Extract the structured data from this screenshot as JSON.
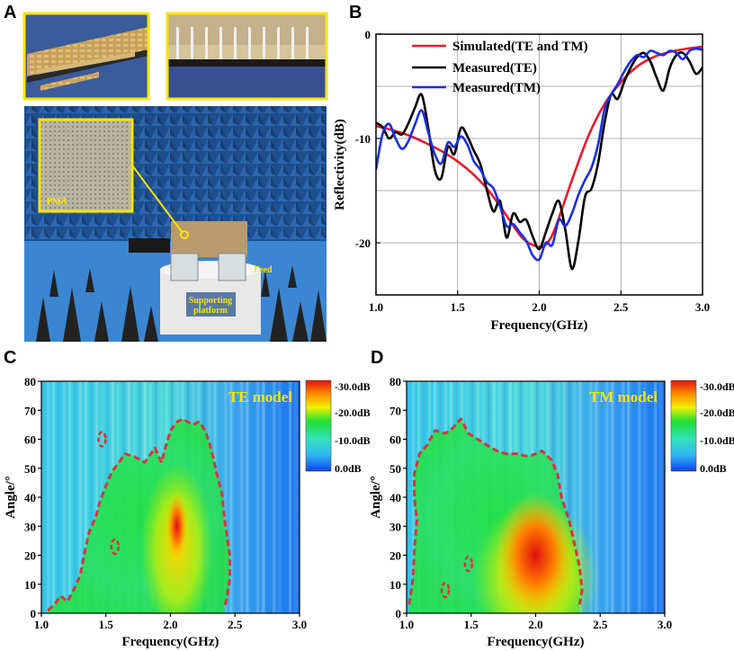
{
  "panels": {
    "a": {
      "letter": "A"
    },
    "b": {
      "letter": "B"
    },
    "c": {
      "letter": "C"
    },
    "d": {
      "letter": "D"
    }
  },
  "photo": {
    "labels": {
      "pma": "PMA",
      "feed": "Feed",
      "support_line1": "Supporting",
      "support_line2": "platform"
    }
  },
  "colors": {
    "simulated": "#e8192c",
    "measured_te": "#000000",
    "measured_tm": "#1a2ee0",
    "contour": "#d8343c",
    "highlight": "#ffe400"
  },
  "chart_data": [
    {
      "id": "B",
      "type": "line",
      "xlabel": "Frequency(GHz)",
      "ylabel": "Reflectivity(dB)",
      "xlim": [
        1.0,
        3.0
      ],
      "ylim": [
        -25,
        0
      ],
      "xticks": [
        "1.0",
        "1.5",
        "2.0",
        "2.5",
        "3.0"
      ],
      "yticks": [
        "0",
        "-10",
        "-20"
      ],
      "grid": true,
      "legend_position": "top",
      "series": [
        {
          "name": "Simulated(TE and TM)",
          "x": [
            1.0,
            1.1,
            1.2,
            1.3,
            1.4,
            1.5,
            1.6,
            1.7,
            1.8,
            1.9,
            2.0,
            2.05,
            2.1,
            2.2,
            2.3,
            2.4,
            2.5,
            2.6,
            2.7,
            2.8,
            2.9,
            3.0
          ],
          "y": [
            -8.8,
            -9.2,
            -9.7,
            -10.4,
            -11.2,
            -12.2,
            -13.5,
            -15.2,
            -17.4,
            -19.6,
            -20.4,
            -20.0,
            -18.5,
            -14.0,
            -9.8,
            -6.7,
            -4.6,
            -3.1,
            -2.2,
            -1.7,
            -1.4,
            -1.2
          ]
        },
        {
          "name": "Measured(TE)",
          "x": [
            1.0,
            1.04,
            1.08,
            1.12,
            1.16,
            1.2,
            1.24,
            1.28,
            1.32,
            1.36,
            1.4,
            1.44,
            1.48,
            1.52,
            1.56,
            1.6,
            1.64,
            1.68,
            1.72,
            1.76,
            1.8,
            1.84,
            1.88,
            1.92,
            1.96,
            2.0,
            2.04,
            2.08,
            2.12,
            2.16,
            2.2,
            2.24,
            2.28,
            2.32,
            2.36,
            2.4,
            2.44,
            2.48,
            2.52,
            2.56,
            2.6,
            2.64,
            2.68,
            2.72,
            2.76,
            2.8,
            2.84,
            2.88,
            2.92,
            2.96,
            3.0
          ],
          "y": [
            -8.5,
            -8.9,
            -10.0,
            -9.4,
            -9.6,
            -8.5,
            -7.0,
            -5.8,
            -9.0,
            -13.0,
            -13.8,
            -10.8,
            -11.5,
            -9.0,
            -9.8,
            -11.2,
            -12.5,
            -15.0,
            -17.0,
            -16.0,
            -19.5,
            -17.2,
            -18.0,
            -17.8,
            -19.4,
            -20.6,
            -19.0,
            -17.2,
            -16.0,
            -18.8,
            -22.5,
            -19.8,
            -15.6,
            -14.8,
            -12.4,
            -8.5,
            -5.8,
            -6.2,
            -4.6,
            -3.2,
            -2.2,
            -1.8,
            -2.6,
            -4.2,
            -5.4,
            -3.2,
            -2.0,
            -1.8,
            -2.6,
            -3.8,
            -3.2
          ]
        },
        {
          "name": "Measured(TM)",
          "x": [
            1.0,
            1.04,
            1.08,
            1.12,
            1.16,
            1.2,
            1.24,
            1.28,
            1.32,
            1.36,
            1.4,
            1.44,
            1.48,
            1.52,
            1.56,
            1.6,
            1.64,
            1.68,
            1.72,
            1.76,
            1.8,
            1.84,
            1.88,
            1.92,
            1.96,
            2.0,
            2.04,
            2.08,
            2.12,
            2.16,
            2.2,
            2.24,
            2.28,
            2.32,
            2.36,
            2.4,
            2.44,
            2.48,
            2.52,
            2.56,
            2.6,
            2.64,
            2.68,
            2.72,
            2.76,
            2.8,
            2.84,
            2.88,
            2.92,
            2.96,
            3.0
          ],
          "y": [
            -13.0,
            -9.6,
            -8.6,
            -10.0,
            -11.0,
            -10.2,
            -8.6,
            -7.3,
            -9.4,
            -11.5,
            -12.4,
            -10.4,
            -10.8,
            -9.8,
            -10.6,
            -12.2,
            -13.0,
            -14.2,
            -14.8,
            -16.5,
            -18.4,
            -18.2,
            -19.0,
            -19.8,
            -21.2,
            -21.6,
            -20.0,
            -20.2,
            -17.8,
            -18.4,
            -17.2,
            -15.4,
            -14.0,
            -12.8,
            -10.6,
            -7.2,
            -5.8,
            -4.8,
            -3.6,
            -2.6,
            -2.0,
            -2.2,
            -1.6,
            -1.8,
            -2.0,
            -1.6,
            -1.8,
            -2.4,
            -1.6,
            -1.4,
            -1.5
          ]
        }
      ]
    },
    {
      "id": "C",
      "type": "heatmap",
      "title": "TE model",
      "xlabel": "Frequency(GHz)",
      "ylabel": "Angle/°",
      "xlim": [
        1.0,
        3.0
      ],
      "ylim": [
        0,
        80
      ],
      "xticks": [
        "1.0",
        "1.5",
        "2.0",
        "2.5",
        "3.0"
      ],
      "yticks": [
        "0",
        "10",
        "20",
        "30",
        "40",
        "50",
        "60",
        "70",
        "80"
      ],
      "colorbar_labels": [
        "-30.0dB",
        "-20.0dB",
        "-10.0dB",
        "0.0dB"
      ],
      "contour_level_db": -10,
      "hotspot": {
        "freq": 2.05,
        "angle": 30,
        "value_db": -30
      },
      "contour_points": [
        [
          1.05,
          1
        ],
        [
          1.1,
          3
        ],
        [
          1.15,
          6
        ],
        [
          1.2,
          4
        ],
        [
          1.25,
          8
        ],
        [
          1.3,
          13
        ],
        [
          1.33,
          20
        ],
        [
          1.37,
          28
        ],
        [
          1.42,
          33
        ],
        [
          1.45,
          38
        ],
        [
          1.5,
          44
        ],
        [
          1.55,
          49
        ],
        [
          1.6,
          52
        ],
        [
          1.65,
          55
        ],
        [
          1.72,
          54
        ],
        [
          1.8,
          52
        ],
        [
          1.88,
          57
        ],
        [
          1.93,
          52
        ],
        [
          1.96,
          57
        ],
        [
          2.0,
          63
        ],
        [
          2.05,
          66
        ],
        [
          2.1,
          67
        ],
        [
          2.17,
          65
        ],
        [
          2.22,
          66
        ],
        [
          2.27,
          63
        ],
        [
          2.32,
          56
        ],
        [
          2.36,
          48
        ],
        [
          2.4,
          41
        ],
        [
          2.42,
          32
        ],
        [
          2.44,
          26
        ],
        [
          2.46,
          20
        ],
        [
          2.46,
          12
        ],
        [
          2.44,
          6
        ],
        [
          2.42,
          2
        ]
      ],
      "contour_islands": [
        {
          "freq": 1.47,
          "angle": 60
        },
        {
          "freq": 1.57,
          "angle": 23
        }
      ]
    },
    {
      "id": "D",
      "type": "heatmap",
      "title": "TM model",
      "xlabel": "Frequency(GHz)",
      "ylabel": "Angle/°",
      "xlim": [
        1.0,
        3.0
      ],
      "ylim": [
        0,
        80
      ],
      "xticks": [
        "1.0",
        "1.5",
        "2.0",
        "2.5",
        "3.0"
      ],
      "yticks": [
        "0",
        "10",
        "20",
        "30",
        "40",
        "50",
        "60",
        "70",
        "80"
      ],
      "colorbar_labels": [
        "-30.0dB",
        "-20.0dB",
        "-10.0dB",
        "0.0dB"
      ],
      "contour_level_db": -10,
      "hotspot": {
        "freq": 2.0,
        "angle": 20,
        "value_db": -28
      },
      "contour_points": [
        [
          1.02,
          3
        ],
        [
          1.05,
          12
        ],
        [
          1.06,
          22
        ],
        [
          1.08,
          32
        ],
        [
          1.06,
          40
        ],
        [
          1.06,
          48
        ],
        [
          1.1,
          55
        ],
        [
          1.16,
          58
        ],
        [
          1.22,
          63
        ],
        [
          1.3,
          62
        ],
        [
          1.36,
          64
        ],
        [
          1.42,
          67
        ],
        [
          1.48,
          62
        ],
        [
          1.55,
          60
        ],
        [
          1.62,
          58
        ],
        [
          1.7,
          56
        ],
        [
          1.77,
          55
        ],
        [
          1.85,
          55
        ],
        [
          1.95,
          54
        ],
        [
          2.05,
          56
        ],
        [
          2.12,
          53
        ],
        [
          2.17,
          48
        ],
        [
          2.2,
          40
        ],
        [
          2.26,
          32
        ],
        [
          2.3,
          24
        ],
        [
          2.34,
          16
        ],
        [
          2.36,
          8
        ],
        [
          2.34,
          3
        ]
      ],
      "contour_islands": [
        {
          "freq": 1.48,
          "angle": 17
        },
        {
          "freq": 1.3,
          "angle": 8
        }
      ]
    }
  ]
}
